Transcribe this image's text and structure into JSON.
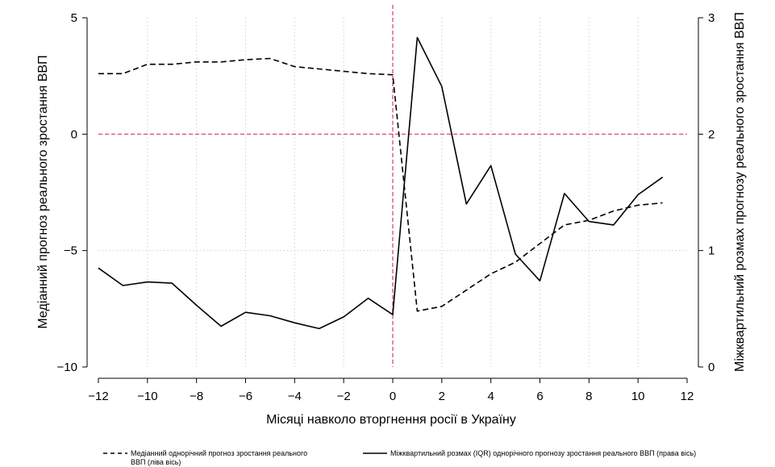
{
  "chart_data": {
    "type": "line",
    "title": "",
    "xlabel": "Місяці навколо вторгнення росії в Україну",
    "ylabel_left": "Медіанний прогноз реального зростання ВВП",
    "ylabel_right": "Міжквартильний розмах прогнозу реального зростання ВВП",
    "xlim": [
      -12,
      12
    ],
    "ylim_left": [
      -10,
      5
    ],
    "ylim_right": [
      0,
      3
    ],
    "x_ticks": [
      -12,
      -10,
      -8,
      -6,
      -4,
      -2,
      0,
      2,
      4,
      6,
      8,
      10,
      12
    ],
    "x_tick_labels": [
      "−12",
      "−10",
      "−8",
      "−6",
      "−4",
      "−2",
      "0",
      "2",
      "4",
      "6",
      "8",
      "10",
      "12"
    ],
    "y_left_ticks": [
      -10,
      -5,
      0,
      5
    ],
    "y_left_tick_labels": [
      "−10",
      "−5",
      "0",
      "5"
    ],
    "y_right_ticks": [
      0,
      1,
      2,
      3
    ],
    "y_right_tick_labels": [
      "0",
      "1",
      "2",
      "3"
    ],
    "grid": true,
    "reference_lines": [
      {
        "axis": "x",
        "value": 0,
        "color": "#d63b6e",
        "style": "dashed"
      },
      {
        "axis": "y",
        "value": 0,
        "color": "#d63b6e",
        "style": "dashed"
      }
    ],
    "legend_position": "bottom",
    "series": [
      {
        "name": "Медіанний однорічний прогноз зростання реального ВВП (ліва вісь)",
        "legend_lines": [
          "Медіанний однорічний прогноз зростання реального",
          "ВВП (ліва вісь)"
        ],
        "axis": "left",
        "style": "dashed",
        "color": "#000000",
        "x": [
          -12,
          -11,
          -10,
          -9,
          -8,
          -7,
          -6,
          -5,
          -4,
          -3,
          -2,
          -1,
          0,
          1,
          2,
          3,
          4,
          5,
          6,
          7,
          8,
          9,
          10,
          11
        ],
        "values": [
          2.6,
          2.6,
          3.0,
          3.0,
          3.1,
          3.1,
          3.2,
          3.25,
          2.9,
          2.8,
          2.7,
          2.6,
          2.55,
          -7.6,
          -7.4,
          -6.7,
          -6.0,
          -5.5,
          -4.7,
          -3.9,
          -3.7,
          -3.3,
          -3.05,
          -2.95
        ]
      },
      {
        "name": "Міжквартильний розмах (IQR) однорічного прогнозу зростання реального ВВП (права вісь)",
        "legend_lines": [
          "Міжквартильний розмах (IQR) однорічного прогнозу зростання реального ВВП (права вісь)"
        ],
        "axis": "right",
        "style": "solid",
        "color": "#000000",
        "x": [
          -12,
          -11,
          -10,
          -9,
          -8,
          -7,
          -6,
          -5,
          -4,
          -3,
          -2,
          -1,
          0,
          1,
          2,
          3,
          4,
          5,
          6,
          7,
          8,
          9,
          10,
          11
        ],
        "values": [
          0.85,
          0.7,
          0.73,
          0.72,
          0.53,
          0.35,
          0.47,
          0.44,
          0.38,
          0.33,
          0.43,
          0.59,
          0.45,
          2.83,
          2.41,
          1.4,
          1.73,
          0.97,
          0.74,
          1.49,
          1.25,
          1.22,
          1.48,
          1.63
        ]
      }
    ]
  }
}
